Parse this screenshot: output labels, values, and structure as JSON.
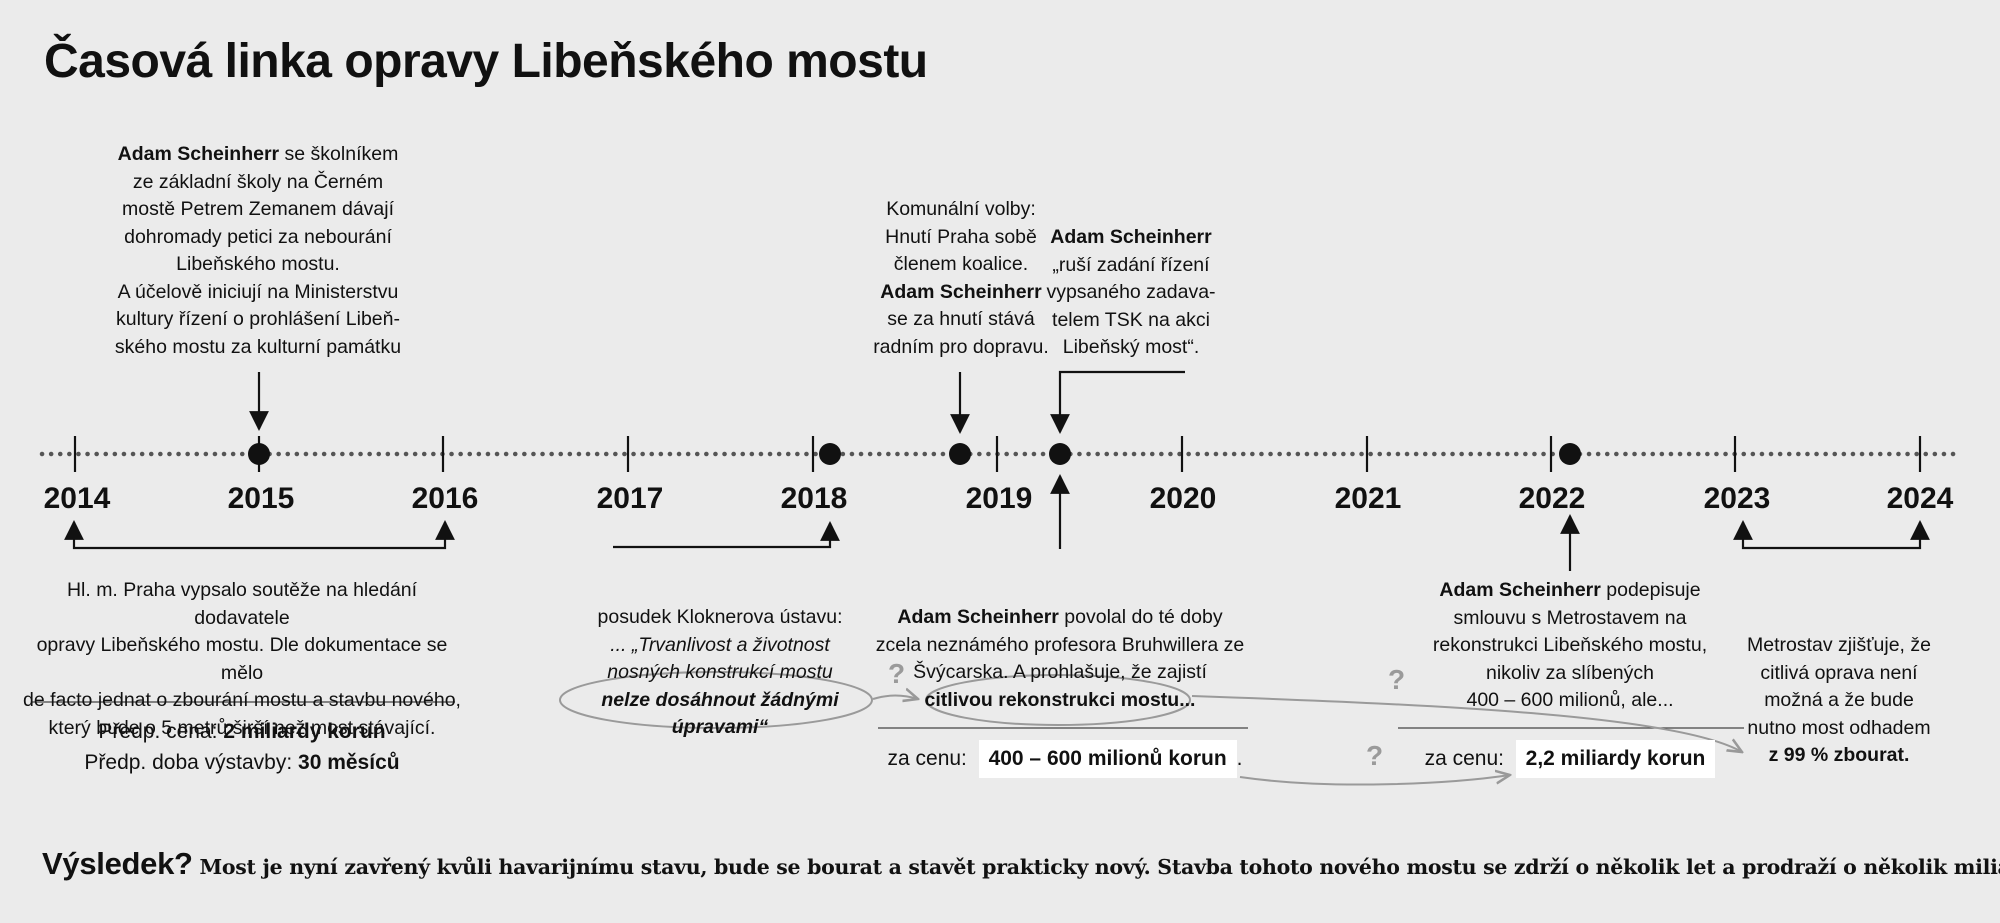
{
  "title": "Časová linka opravy Libeňského mostu",
  "years": [
    "2014",
    "2015",
    "2016",
    "2017",
    "2018",
    "2019",
    "2020",
    "2021",
    "2022",
    "2023",
    "2024"
  ],
  "top_events": {
    "e2015": {
      "name": "Adam Scheinherr",
      "l1": " se školníkem",
      "l2": "ze základní školy na Černém",
      "l3": "mostě Petrem Zemanem dávají",
      "l4": "dohromady petici za nebourání",
      "l5": "Libeňského mostu.",
      "l6": "A účelově iniciují na Ministerstvu",
      "l7": "kultury řízení o prohlášení Libeň-",
      "l8": "ského mostu za kulturní památku"
    },
    "e2018": {
      "l1": "Komunální volby:",
      "l2": "Hnutí Praha sobě",
      "l3": "členem koalice.",
      "name": "Adam Scheinherr",
      "l5": "se za hnutí stává",
      "l6": "radním pro dopravu."
    },
    "e2019": {
      "name": "Adam Scheinherr",
      "l2": "„ruší zadání řízení",
      "l3": "vypsaného zadava-",
      "l4": "telem TSK na akci",
      "l5": "Libeňský most“."
    }
  },
  "bottom_events": {
    "competition": {
      "l1": "Hl. m. Praha vypsalo soutěže na hledání dodavatele",
      "l2": "opravy Libeňského mostu. Dle dokumentace se mělo",
      "l3": "de facto jednat o zbourání mostu a stavbu nového,",
      "l4": "který bude o 5 metrů širší než most stávající.",
      "price_label": "Předp. cena: ",
      "price_value": "2 miliardy korun",
      "duration_label": "Předp. doba výstavby: ",
      "duration_value": "30 měsíců"
    },
    "kloknerov": {
      "l1": "posudek Kloknerova ústavu:",
      "l2": "... „Trvanlivost a životnost",
      "l3": "nosných konstrukcí mostu",
      "l4": "nelze dosáhnout žádnými úpravami“"
    },
    "bruhwiller": {
      "name": "Adam Scheinherr",
      "l1_rest": " povolal do té doby",
      "l2": "zcela neznámého profesora Bruhwillera ze",
      "l3": "Švýcarska. A prohlašuje, že zajistí",
      "l4": "citlivou rekonstrukci mostu...",
      "price_label": "za cenu:",
      "price_value": "400 – 600 milionů korun",
      "price_dot": "."
    },
    "metrostav_contract": {
      "name": "Adam Scheinherr",
      "l1_rest": " podepisuje",
      "l2": "smlouvu s Metrostavem na",
      "l3": "rekonstrukci Libeňského mostu,",
      "l4": "nikoliv za slíbených",
      "l5": "400 – 600 milionů, ale...",
      "price_label": "za cenu:",
      "price_value": "2,2 miliardy korun"
    },
    "metrostav_finding": {
      "l1": "Metrostav zjišťuje, že",
      "l2": "citlivá oprava není",
      "l3": "možná a že bude",
      "l4": "nutno most odhadem",
      "l5": "z 99 % zbourat."
    }
  },
  "question_mark": "?",
  "footer": {
    "lead": "Výsledek?",
    "text": " Most je nyní zavřený kvůli havarijnímu stavu, bude se bourat a stavět prakticky nový. Stavba tohoto nového mostu se zdrží o několik let a prodraží o několik miliard."
  },
  "colors": {
    "background": "#ebebeb",
    "text": "#111111",
    "grey_annotation": "#9a9a9a",
    "value_box": "#ffffff"
  }
}
